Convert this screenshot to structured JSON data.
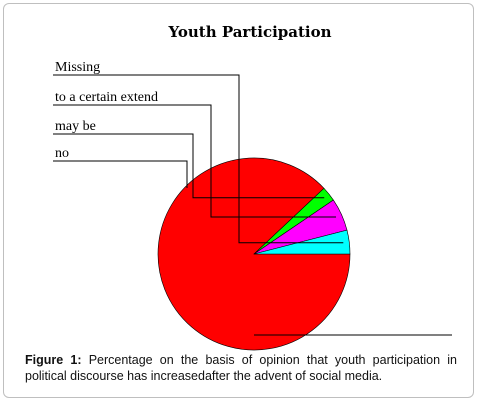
{
  "chart_data": {
    "type": "pie",
    "title": "Youth Participation",
    "slices": [
      {
        "label": "no",
        "value": 88,
        "color": "#ff0000"
      },
      {
        "label": "may be",
        "value": 2.5,
        "color": "#00ff00"
      },
      {
        "label": "to a certain extend",
        "value": 5.5,
        "color": "#ff00ff"
      },
      {
        "label": "Missing",
        "value": 4,
        "color": "#00ffff"
      }
    ],
    "legend_placement": "top-left with leader lines"
  },
  "caption": {
    "figure_label": "Figure 1:",
    "text": "Percentage on the basis of opinion that youth participation in political discourse has increasedafter the advent of social media."
  }
}
